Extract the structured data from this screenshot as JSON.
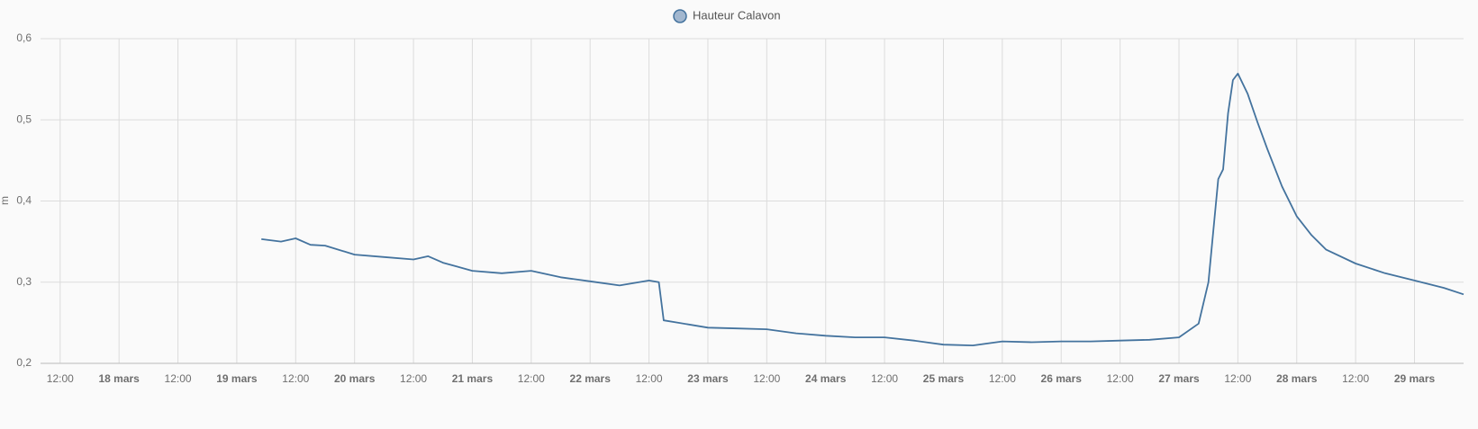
{
  "chart_data": {
    "type": "line",
    "y_label": "m",
    "series": [
      {
        "name": "Hauteur Calavon",
        "color": "#44739e",
        "x": [
          "03-19 05:00",
          "03-19 09:00",
          "03-19 12:00",
          "03-19 15:00",
          "03-19 18:00",
          "03-20 00:00",
          "03-20 06:00",
          "03-20 12:00",
          "03-20 15:00",
          "03-20 18:00",
          "03-21 00:00",
          "03-21 06:00",
          "03-21 12:00",
          "03-21 18:00",
          "03-22 00:00",
          "03-22 06:00",
          "03-22 12:00",
          "03-22 14:00",
          "03-22 15:00",
          "03-22 18:00",
          "03-23 00:00",
          "03-23 06:00",
          "03-23 12:00",
          "03-23 18:00",
          "03-24 00:00",
          "03-24 06:00",
          "03-24 12:00",
          "03-24 18:00",
          "03-25 00:00",
          "03-25 06:00",
          "03-25 12:00",
          "03-25 18:00",
          "03-26 00:00",
          "03-26 06:00",
          "03-26 12:00",
          "03-26 18:00",
          "03-27 00:00",
          "03-27 04:00",
          "03-27 06:00",
          "03-27 08:00",
          "03-27 09:00",
          "03-27 10:00",
          "03-27 11:00",
          "03-27 12:00",
          "03-27 14:00",
          "03-27 16:00",
          "03-27 18:00",
          "03-27 21:00",
          "03-28 00:00",
          "03-28 03:00",
          "03-28 06:00",
          "03-28 12:00",
          "03-28 18:00",
          "03-29 00:00",
          "03-29 06:00",
          "03-29 10:00"
        ],
        "values": [
          0.353,
          0.35,
          0.354,
          0.346,
          0.345,
          0.334,
          0.331,
          0.328,
          0.332,
          0.324,
          0.314,
          0.311,
          0.314,
          0.306,
          0.301,
          0.296,
          0.302,
          0.3,
          0.253,
          0.25,
          0.244,
          0.243,
          0.242,
          0.237,
          0.234,
          0.232,
          0.232,
          0.228,
          0.223,
          0.222,
          0.227,
          0.226,
          0.227,
          0.227,
          0.228,
          0.229,
          0.232,
          0.249,
          0.3,
          0.427,
          0.439,
          0.508,
          0.549,
          0.557,
          0.532,
          0.497,
          0.464,
          0.418,
          0.381,
          0.358,
          0.34,
          0.323,
          0.311,
          0.302,
          0.293,
          0.285
        ]
      }
    ],
    "xlim": [
      "03-17 08:00",
      "03-29 10:00"
    ],
    "xticks": [
      {
        "value": "03-17 12:00",
        "label": "12:00"
      },
      {
        "value": "03-18 00:00",
        "label": "18 mars"
      },
      {
        "value": "03-18 12:00",
        "label": "12:00"
      },
      {
        "value": "03-19 00:00",
        "label": "19 mars"
      },
      {
        "value": "03-19 12:00",
        "label": "12:00"
      },
      {
        "value": "03-20 00:00",
        "label": "20 mars"
      },
      {
        "value": "03-20 12:00",
        "label": "12:00"
      },
      {
        "value": "03-21 00:00",
        "label": "21 mars"
      },
      {
        "value": "03-21 12:00",
        "label": "12:00"
      },
      {
        "value": "03-22 00:00",
        "label": "22 mars"
      },
      {
        "value": "03-22 12:00",
        "label": "12:00"
      },
      {
        "value": "03-23 00:00",
        "label": "23 mars"
      },
      {
        "value": "03-23 12:00",
        "label": "12:00"
      },
      {
        "value": "03-24 00:00",
        "label": "24 mars"
      },
      {
        "value": "03-24 12:00",
        "label": "12:00"
      },
      {
        "value": "03-25 00:00",
        "label": "25 mars"
      },
      {
        "value": "03-25 12:00",
        "label": "12:00"
      },
      {
        "value": "03-26 00:00",
        "label": "26 mars"
      },
      {
        "value": "03-26 12:00",
        "label": "12:00"
      },
      {
        "value": "03-27 00:00",
        "label": "27 mars"
      },
      {
        "value": "03-27 12:00",
        "label": "12:00"
      },
      {
        "value": "03-28 00:00",
        "label": "28 mars"
      },
      {
        "value": "03-28 12:00",
        "label": "12:00"
      },
      {
        "value": "03-29 00:00",
        "label": "29 mars"
      }
    ],
    "ylim": [
      0.2,
      0.6
    ],
    "yticks": [
      {
        "value": 0.2,
        "label": "0,2"
      },
      {
        "value": 0.3,
        "label": "0,3"
      },
      {
        "value": 0.4,
        "label": "0,4"
      },
      {
        "value": 0.5,
        "label": "0,5"
      },
      {
        "value": 0.6,
        "label": "0,6"
      }
    ],
    "grid": true
  }
}
